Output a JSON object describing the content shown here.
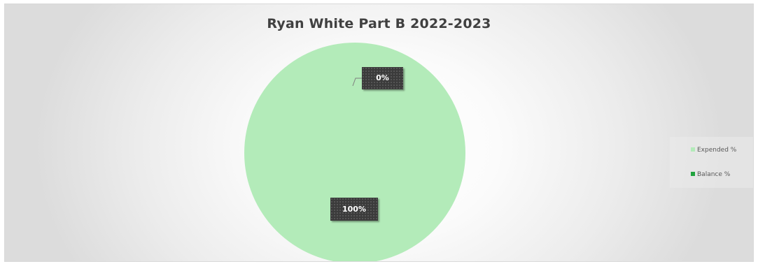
{
  "chart_data": {
    "type": "pie",
    "title": "Ryan White Part B 2022-2023",
    "categories": [
      "Expended %",
      "Balance %"
    ],
    "values": [
      100,
      0
    ],
    "data_labels": [
      "100%",
      "0%"
    ],
    "colors": [
      "#b3ebb9",
      "#22a33f"
    ],
    "legend_position": "right"
  }
}
